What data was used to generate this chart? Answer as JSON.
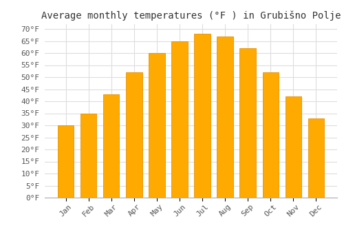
{
  "title": "Average monthly temperatures (°F ) in Grubišno Polje",
  "months": [
    "Jan",
    "Feb",
    "Mar",
    "Apr",
    "May",
    "Jun",
    "Jul",
    "Aug",
    "Sep",
    "Oct",
    "Nov",
    "Dec"
  ],
  "values": [
    30,
    35,
    43,
    52,
    60,
    65,
    68,
    67,
    62,
    52,
    42,
    33
  ],
  "bar_color": "#FFAA00",
  "bar_edge_color": "#E89000",
  "background_color": "#FFFFFF",
  "grid_color": "#DDDDDD",
  "ylim": [
    0,
    72
  ],
  "yticks": [
    0,
    5,
    10,
    15,
    20,
    25,
    30,
    35,
    40,
    45,
    50,
    55,
    60,
    65,
    70
  ],
  "title_fontsize": 10,
  "tick_fontsize": 8,
  "fig_bg_color": "#FFFFFF"
}
